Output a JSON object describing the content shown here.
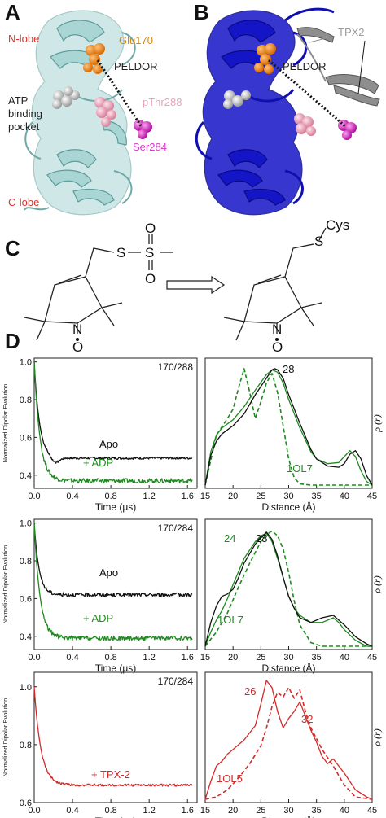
{
  "panel_labels": {
    "a": "A",
    "b": "B",
    "c": "C",
    "d": "D"
  },
  "panel_a": {
    "n_lobe": "N-lobe",
    "c_lobe": "C-lobe",
    "glu": "Glu170",
    "peldor": "PELDOR",
    "atp_line1": "ATP",
    "atp_line2": "binding",
    "atp_line3": "pocket",
    "pthr": "pThr288",
    "ser": "Ser284"
  },
  "panel_b": {
    "tpx2": "TPX2",
    "peldor": "PELDOR"
  },
  "panel_c": {
    "cys": "Cys",
    "s_left": "S",
    "s_center": "S",
    "o_top": "O",
    "o_bottom": "O",
    "n_left": "N",
    "o_left": "O",
    "s_right": "S",
    "n_right": "N",
    "o_right": "O"
  },
  "colors": {
    "apo": "#111111",
    "adp": "#1f8a1f",
    "tpx": "#d42a2a",
    "red_label": "#d9342b",
    "orange_label": "#d9860f",
    "pink_label": "#e6a3b6",
    "magenta_label": "#d63bc1",
    "light_cartoon": "#a9d6d4",
    "dark_cartoon": "#1515c8"
  },
  "chart_data": [
    {
      "type": "line",
      "corner_label": "170/288",
      "ylabel": "Normalized Dipolar Evolution",
      "xlabel": "Time (μs)",
      "xlim": [
        0.0,
        1.7
      ],
      "ylim": [
        0.33,
        1.02
      ],
      "xticks": [
        "0.0",
        "0.4",
        "0.8",
        "1.2",
        "1.6"
      ],
      "yticks": [
        "0.4",
        "0.6",
        "0.8",
        "1.0"
      ],
      "annotations": [
        {
          "text": "Apo",
          "color": "#111111"
        },
        {
          "text": "+ ADP",
          "color": "#1f8a1f"
        }
      ],
      "series": [
        {
          "color": "#111111",
          "plateau": 0.49,
          "decay": 0.055,
          "noise": 0.006,
          "dip": 0.03
        },
        {
          "color": "#1f8a1f",
          "plateau": 0.37,
          "decay": 0.06,
          "noise": 0.012,
          "dip": 0.0
        }
      ]
    },
    {
      "type": "line",
      "corner_label": "",
      "ylabel": "ρ (r)",
      "xlabel": "Distance (Å)",
      "xlim": [
        15,
        45
      ],
      "xticks": [
        "15",
        "20",
        "25",
        "30",
        "35",
        "40",
        "45"
      ],
      "annotations": [
        {
          "text": "28",
          "color": "#111111"
        },
        {
          "text": "1OL7",
          "color": "#1f8a1f"
        }
      ],
      "series": [
        {
          "color": "#1f8a1f",
          "dash": true,
          "x": [
            15,
            17,
            19,
            20,
            21,
            22,
            23,
            24,
            25,
            26,
            27,
            28,
            29,
            30,
            31,
            32,
            34,
            36,
            40,
            45
          ],
          "y": [
            0.0,
            0.42,
            0.56,
            0.64,
            0.82,
            0.98,
            0.78,
            0.56,
            0.7,
            0.86,
            0.94,
            0.78,
            0.5,
            0.22,
            0.06,
            0.01,
            0.0,
            0.0,
            0.0,
            0.0
          ]
        },
        {
          "color": "#1f8a1f",
          "x": [
            15,
            16,
            17,
            18,
            20,
            22,
            24,
            26,
            27,
            28,
            29,
            30,
            32,
            34,
            35,
            37,
            39,
            40,
            41,
            42,
            43,
            44,
            45
          ],
          "y": [
            0.0,
            0.28,
            0.42,
            0.48,
            0.55,
            0.66,
            0.8,
            0.93,
            0.97,
            0.95,
            0.86,
            0.72,
            0.48,
            0.28,
            0.22,
            0.18,
            0.19,
            0.24,
            0.29,
            0.24,
            0.12,
            0.03,
            0.0
          ]
        },
        {
          "color": "#111111",
          "x": [
            15,
            16,
            17,
            18,
            20,
            22,
            24,
            26,
            27,
            27.5,
            28,
            29,
            30,
            32,
            34,
            35,
            37,
            39,
            40,
            41,
            42,
            43,
            44,
            45
          ],
          "y": [
            0.0,
            0.25,
            0.37,
            0.43,
            0.5,
            0.6,
            0.76,
            0.9,
            0.97,
            0.98,
            0.97,
            0.9,
            0.76,
            0.52,
            0.3,
            0.22,
            0.16,
            0.15,
            0.18,
            0.26,
            0.29,
            0.22,
            0.08,
            0.0
          ]
        }
      ]
    },
    {
      "type": "line",
      "corner_label": "170/284",
      "ylabel": "Normalized Dipolar Evolution",
      "xlabel": "Time (μs)",
      "xlim": [
        0.0,
        1.7
      ],
      "ylim": [
        0.33,
        1.02
      ],
      "xticks": [
        "0.0",
        "0.4",
        "0.8",
        "1.2",
        "1.6"
      ],
      "yticks": [
        "0.4",
        "0.6",
        "0.8",
        "1.0"
      ],
      "annotations": [
        {
          "text": "Apo",
          "color": "#111111"
        },
        {
          "text": "+ ADP",
          "color": "#1f8a1f"
        }
      ],
      "series": [
        {
          "color": "#111111",
          "plateau": 0.62,
          "decay": 0.05,
          "noise": 0.01,
          "dip": 0.0
        },
        {
          "color": "#1f8a1f",
          "plateau": 0.39,
          "decay": 0.06,
          "noise": 0.012,
          "dip": 0.0
        }
      ]
    },
    {
      "type": "line",
      "corner_label": "",
      "ylabel": "ρ (r)",
      "xlabel": "Distance (Å)",
      "xlim": [
        15,
        45
      ],
      "xticks": [
        "15",
        "20",
        "25",
        "30",
        "35",
        "40",
        "45"
      ],
      "annotations": [
        {
          "text": "24",
          "color": "#1f8a1f"
        },
        {
          "text": "28",
          "color": "#111111"
        },
        {
          "text": "1OL7",
          "color": "#1f8a1f"
        }
      ],
      "series": [
        {
          "color": "#1f8a1f",
          "dash": true,
          "x": [
            15,
            17,
            19,
            21,
            23,
            25,
            26,
            27,
            28,
            29,
            30,
            31,
            32,
            34,
            36,
            40,
            45
          ],
          "y": [
            0.0,
            0.12,
            0.28,
            0.5,
            0.7,
            0.88,
            0.94,
            0.97,
            0.93,
            0.82,
            0.62,
            0.38,
            0.18,
            0.03,
            0.0,
            0.0,
            0.0
          ]
        },
        {
          "color": "#1f8a1f",
          "x": [
            15,
            16,
            17,
            18,
            19,
            20,
            22,
            24,
            25,
            26,
            27,
            28,
            29,
            30,
            31,
            32,
            34,
            36,
            38,
            39,
            40,
            42,
            44,
            45
          ],
          "y": [
            0.0,
            0.12,
            0.22,
            0.3,
            0.4,
            0.52,
            0.74,
            0.88,
            0.93,
            0.95,
            0.88,
            0.74,
            0.58,
            0.42,
            0.32,
            0.26,
            0.2,
            0.2,
            0.24,
            0.2,
            0.14,
            0.05,
            0.0,
            0.0
          ]
        },
        {
          "color": "#111111",
          "x": [
            15,
            16,
            17,
            18,
            19,
            20,
            21,
            22,
            24,
            26,
            27,
            28,
            29,
            30,
            31,
            32,
            34,
            36,
            38,
            40,
            42,
            44,
            45
          ],
          "y": [
            0.0,
            0.2,
            0.34,
            0.42,
            0.44,
            0.48,
            0.58,
            0.7,
            0.86,
            0.96,
            0.9,
            0.76,
            0.58,
            0.42,
            0.32,
            0.24,
            0.2,
            0.24,
            0.26,
            0.18,
            0.08,
            0.02,
            0.0
          ]
        }
      ]
    },
    {
      "type": "line",
      "corner_label": "170/284",
      "ylabel": "Normalized Dipolar Evolution",
      "xlabel": "Time (μs)",
      "xlim": [
        0.0,
        1.7
      ],
      "ylim": [
        0.6,
        1.05
      ],
      "xticks": [
        "0.0",
        "0.4",
        "0.8",
        "1.2",
        "1.6"
      ],
      "yticks": [
        "0.6",
        "0.8",
        "1.0"
      ],
      "annotations": [
        {
          "text": "+ TPX-2",
          "color": "#d42a2a"
        }
      ],
      "series": [
        {
          "color": "#d42a2a",
          "plateau": 0.66,
          "decay": 0.07,
          "noise": 0.004,
          "dip": 0.0
        }
      ]
    },
    {
      "type": "line",
      "corner_label": "",
      "ylabel": "ρ (r)",
      "xlabel": "Distance (Å)",
      "xlim": [
        15,
        45
      ],
      "xticks": [
        "15",
        "20",
        "25",
        "30",
        "35",
        "40",
        "45"
      ],
      "annotations": [
        {
          "text": "26",
          "color": "#d42a2a"
        },
        {
          "text": "32",
          "color": "#d42a2a"
        },
        {
          "text": "1OL5",
          "color": "#d42a2a"
        }
      ],
      "series": [
        {
          "color": "#d42a2a",
          "dash": true,
          "x": [
            15,
            17,
            19,
            21,
            23,
            25,
            26,
            27,
            28,
            29,
            30,
            31,
            32,
            33,
            34,
            36,
            38,
            40,
            42,
            45
          ],
          "y": [
            0.0,
            0.02,
            0.08,
            0.18,
            0.3,
            0.45,
            0.6,
            0.78,
            0.9,
            0.86,
            0.94,
            0.85,
            0.92,
            0.74,
            0.6,
            0.42,
            0.28,
            0.12,
            0.02,
            0.0
          ]
        },
        {
          "color": "#d42a2a",
          "x": [
            15,
            16,
            17,
            18,
            19,
            20,
            22,
            24,
            25,
            26,
            27,
            28,
            29,
            30,
            31,
            32,
            33,
            34,
            35,
            36,
            37,
            38,
            39,
            40,
            42,
            44,
            45
          ],
          "y": [
            0.0,
            0.15,
            0.28,
            0.32,
            0.38,
            0.42,
            0.5,
            0.62,
            0.8,
            1.0,
            0.94,
            0.74,
            0.6,
            0.68,
            0.74,
            0.82,
            0.7,
            0.58,
            0.48,
            0.36,
            0.3,
            0.34,
            0.28,
            0.22,
            0.08,
            0.02,
            0.0
          ]
        }
      ]
    }
  ]
}
